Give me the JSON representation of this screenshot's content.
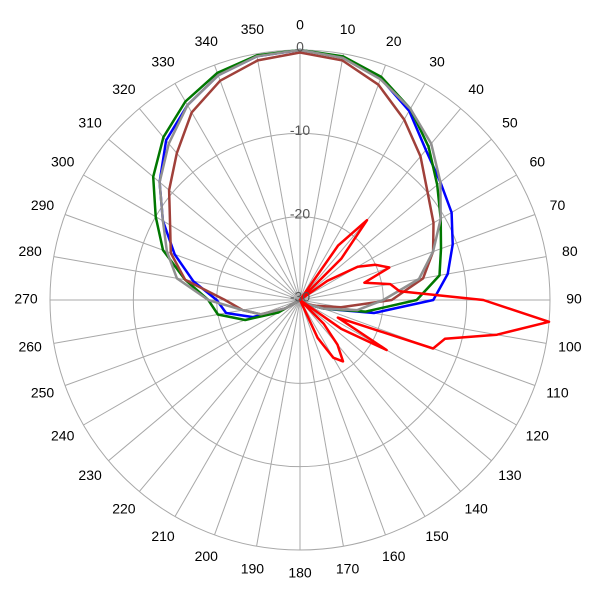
{
  "chart_data": {
    "type": "polar",
    "rlim": [
      -30,
      0
    ],
    "rticks": [
      0,
      -10,
      -20,
      -30
    ],
    "thetaticks": [
      0,
      10,
      20,
      30,
      40,
      50,
      60,
      70,
      80,
      90,
      100,
      110,
      120,
      130,
      140,
      150,
      160,
      170,
      180,
      190,
      200,
      210,
      220,
      230,
      240,
      250,
      260,
      270,
      280,
      290,
      300,
      310,
      320,
      330,
      340,
      350
    ],
    "theta": [
      0,
      10,
      20,
      30,
      40,
      50,
      60,
      70,
      80,
      90,
      100,
      110,
      120,
      130,
      140,
      150,
      160,
      170,
      180,
      190,
      200,
      210,
      220,
      230,
      240,
      250,
      260,
      270,
      280,
      290,
      300,
      310,
      320,
      330,
      340,
      350
    ],
    "series": [
      {
        "color": "#0000ff",
        "values": [
          0,
          -0.4,
          -1.7,
          -3.8,
          -6.5,
          -8,
          -9,
          -10.5,
          -12,
          -14,
          -21,
          -27,
          -29,
          -30,
          -30,
          -30,
          -30,
          -30,
          -30,
          -30,
          -30,
          -30,
          -30,
          -30,
          -28,
          -24,
          -21,
          -20,
          -17,
          -14,
          -11,
          -8,
          -5,
          -3,
          -1.3,
          -0.3
        ]
      },
      {
        "color": "#007700",
        "values": [
          0,
          -0.3,
          -1.5,
          -3.5,
          -6,
          -8.5,
          -10.5,
          -12,
          -13,
          -16,
          -22,
          -27,
          -29,
          -30,
          -30,
          -30,
          -30,
          -30,
          -30,
          -30,
          -30,
          -30,
          -30,
          -30,
          -27,
          -23,
          -20,
          -19,
          -16,
          -12.5,
          -10,
          -7,
          -4.5,
          -2.5,
          -1,
          -0.2
        ]
      },
      {
        "color": "#a0403a",
        "values": [
          -0.3,
          -0.8,
          -2.5,
          -5,
          -7.5,
          -10,
          -11.5,
          -13,
          -15,
          -19,
          -25,
          -28,
          -29,
          -30,
          -30,
          -30,
          -30,
          -30,
          -30,
          -30,
          -30,
          -30,
          -30,
          -30,
          -28,
          -25,
          -23,
          -21,
          -16,
          -13.5,
          -12,
          -9.5,
          -7,
          -4,
          -2,
          -0.8
        ]
      },
      {
        "color": "#909090",
        "values": [
          0,
          -0.5,
          -1.8,
          -3.5,
          -5.5,
          -8,
          -10.5,
          -13,
          -15.5,
          -20,
          -23,
          -27,
          -29,
          -30,
          -30,
          -30,
          -30,
          -30,
          -30,
          -30,
          -30,
          -30,
          -30,
          -30,
          -28,
          -25,
          -23,
          -19,
          -15,
          -13,
          -11,
          -8,
          -5.5,
          -3,
          -1.3,
          -0.3
        ]
      },
      {
        "color": "#ff0000",
        "theta": [
          0,
          5,
          10,
          15,
          20,
          25,
          30,
          35,
          40,
          45,
          50,
          55,
          60,
          65,
          70,
          75,
          80,
          85,
          90,
          95,
          100,
          105,
          110,
          115,
          120,
          125,
          130,
          135,
          140,
          145,
          150,
          155,
          160,
          165,
          170,
          175,
          180,
          185,
          190,
          195,
          200,
          205,
          210,
          215,
          220,
          225,
          230,
          235,
          240,
          245,
          250,
          255,
          260,
          265,
          270,
          275,
          280,
          285,
          290,
          295,
          300,
          305,
          310,
          315,
          320,
          325,
          330,
          335,
          340,
          345,
          350,
          355
        ],
        "values": [
          -30,
          -30,
          -30,
          -30,
          -30,
          -30,
          -30,
          -22,
          -17.5,
          -23,
          -30,
          -26,
          -22,
          -20,
          -18.6,
          -22,
          -19,
          -18,
          -8,
          0,
          -6,
          -12,
          -13,
          -25,
          -18,
          -24,
          -30,
          -26,
          -23,
          -21,
          -22,
          -25,
          -30,
          -30,
          -30,
          -30,
          -30,
          -30,
          -30,
          -30,
          -30,
          -30,
          -30,
          -30,
          -30,
          -30,
          -30,
          -30,
          -30,
          -30,
          -30,
          -30,
          -30,
          -30,
          -30,
          -30,
          -30,
          -30,
          -30,
          -30,
          -30,
          -30,
          -30,
          -30,
          -30,
          -30,
          -30,
          -30,
          -30,
          -30,
          -30,
          -30
        ]
      }
    ]
  }
}
